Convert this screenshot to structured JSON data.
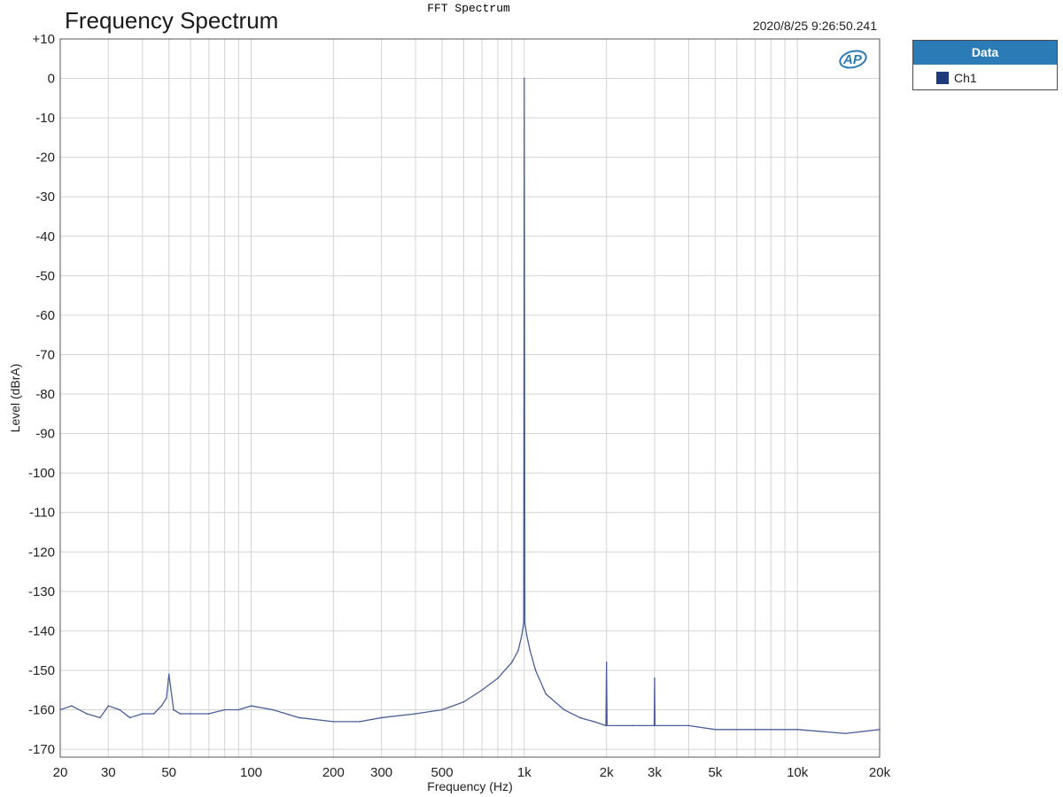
{
  "window_title": "FFT Spectrum",
  "chart_title": "Frequency Spectrum",
  "timestamp": "2020/8/25 9:26:50.241",
  "logo_text": "AP",
  "legend": {
    "header": "Data",
    "items": [
      {
        "label": "Ch1",
        "color": "#1f3a7a"
      }
    ]
  },
  "chart_data": {
    "type": "line",
    "title": "Frequency Spectrum",
    "xlabel": "Frequency (Hz)",
    "ylabel": "Level (dBrA)",
    "xscale": "log",
    "xlim": [
      20,
      20000
    ],
    "ylim": [
      -172,
      10
    ],
    "x_ticks": [
      20,
      30,
      50,
      100,
      200,
      300,
      500,
      1000,
      2000,
      3000,
      5000,
      10000,
      20000
    ],
    "x_tick_labels": [
      "20",
      "30",
      "50",
      "100",
      "200",
      "300",
      "500",
      "1k",
      "2k",
      "3k",
      "5k",
      "10k",
      "20k"
    ],
    "y_ticks": [
      10,
      0,
      -10,
      -20,
      -30,
      -40,
      -50,
      -60,
      -70,
      -80,
      -90,
      -100,
      -110,
      -120,
      -130,
      -140,
      -150,
      -160,
      -170
    ],
    "y_tick_labels": [
      "+10",
      "0",
      "-10",
      "-20",
      "-30",
      "-40",
      "-50",
      "-60",
      "-70",
      "-80",
      "-90",
      "-100",
      "-110",
      "-120",
      "-130",
      "-140",
      "-150",
      "-160",
      "-170"
    ],
    "grid": true,
    "legend_position": "outside-right",
    "series": [
      {
        "name": "Ch1",
        "color": "#4a5f9a",
        "x": [
          20,
          22,
          25,
          28,
          30,
          33,
          36,
          40,
          44,
          47,
          49,
          50,
          52,
          55,
          60,
          70,
          80,
          90,
          100,
          120,
          150,
          200,
          250,
          300,
          400,
          500,
          600,
          700,
          800,
          900,
          950,
          980,
          995,
          1000,
          1005,
          1020,
          1050,
          1100,
          1200,
          1400,
          1600,
          1800,
          1990,
          2000,
          2010,
          2500,
          2990,
          3000,
          3010,
          4000,
          5000,
          7000,
          10000,
          15000,
          20000
        ],
        "y": [
          -160,
          -159,
          -161,
          -162,
          -159,
          -160,
          -162,
          -161,
          -161,
          -159,
          -157,
          -151,
          -160,
          -161,
          -161,
          -161,
          -160,
          -160,
          -159,
          -160,
          -162,
          -163,
          -163,
          -162,
          -161,
          -160,
          -158,
          -155,
          -152,
          -148,
          -145,
          -141,
          -138,
          0,
          -138,
          -141,
          -145,
          -150,
          -156,
          -160,
          -162,
          -163,
          -164,
          -148,
          -164,
          -164,
          -164,
          -152,
          -164,
          -164,
          -165,
          -165,
          -165,
          -166,
          -165
        ]
      }
    ]
  }
}
